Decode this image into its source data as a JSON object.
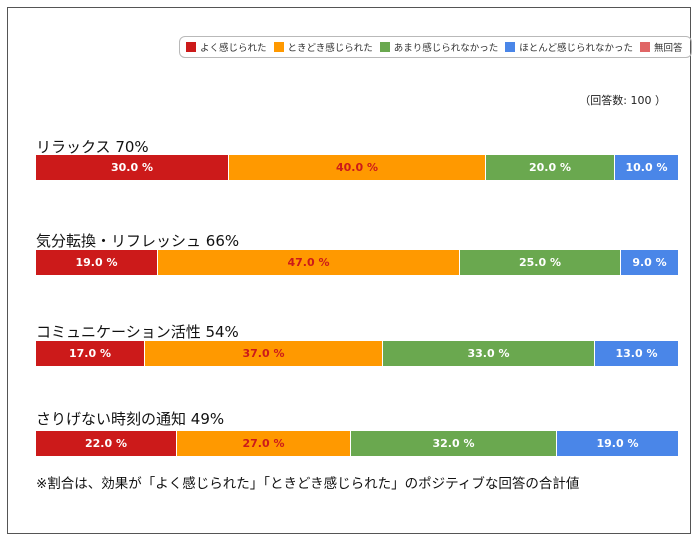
{
  "chart_data": {
    "type": "bar",
    "orientation": "horizontal-stacked-100",
    "legend": {
      "placement": "top-right",
      "entries": [
        {
          "name": "よく感じられた",
          "color": "#cc1a1a"
        },
        {
          "name": "ときどき感じられた",
          "color": "#ff9900"
        },
        {
          "name": "あまり感じられなかった",
          "color": "#6aa84f"
        },
        {
          "name": "ほとんど感じられなかった",
          "color": "#4a86e8"
        },
        {
          "name": "無回答",
          "color": "#e06666"
        }
      ]
    },
    "respondents_note": "（回答数: 100 ）",
    "categories": [
      {
        "title": "リラックス 70%",
        "values": [
          30.0,
          40.0,
          20.0,
          10.0
        ],
        "labels": [
          "30.0 %",
          "40.0 %",
          "20.0 %",
          "10.0 %"
        ]
      },
      {
        "title": "気分転換・リフレッシュ 66%",
        "values": [
          19.0,
          47.0,
          25.0,
          9.0
        ],
        "labels": [
          "19.0 %",
          "47.0 %",
          "25.0 %",
          "9.0 %"
        ]
      },
      {
        "title": "コミュニケーション活性 54%",
        "values": [
          17.0,
          37.0,
          33.0,
          13.0
        ],
        "labels": [
          "17.0 %",
          "37.0 %",
          "33.0 %",
          "13.0 %"
        ]
      },
      {
        "title": "さりげない時刻の通知 49%",
        "values": [
          22.0,
          27.0,
          32.0,
          19.0
        ],
        "labels": [
          "22.0 %",
          "27.0 %",
          "32.0 %",
          "19.0 %"
        ]
      }
    ],
    "label_colors": [
      "#ffffff",
      "#cc1a1a",
      "#ffffff",
      "#ffffff"
    ],
    "footnote": "※割合は、効果が「よく感じられた」「ときどき感じられた」のポジティブな回答の合計値"
  }
}
